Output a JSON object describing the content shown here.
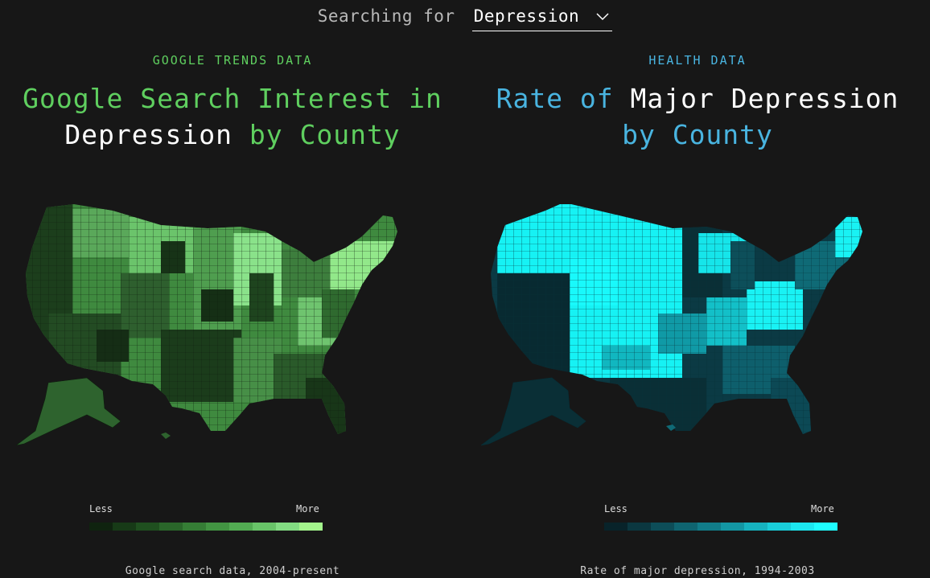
{
  "search": {
    "prefix": "Searching for",
    "selected": "Depression"
  },
  "left": {
    "eyebrow": "GOOGLE TRENDS DATA",
    "title": {
      "line1": "Google Search Interest in",
      "line2_highlight": "Depression",
      "line2_rest": " by County"
    },
    "legend": {
      "less": "Less",
      "more": "More",
      "colors": [
        "#0f230f",
        "#173a17",
        "#1f4f1f",
        "#2a662a",
        "#357d35",
        "#429442",
        "#52ab52",
        "#68c468",
        "#82dc82",
        "#a3f58c"
      ]
    },
    "source": "Google search data, 2004-present",
    "accent": "#5fcf5f"
  },
  "right": {
    "eyebrow": "HEALTH DATA",
    "title": {
      "line1_a": "Rate of ",
      "line1_b": "Major Depression",
      "line2": "by County"
    },
    "legend": {
      "less": "Less",
      "more": "More",
      "colors": [
        "#08232a",
        "#0b3740",
        "#0d4d58",
        "#0f6470",
        "#117c89",
        "#1396a3",
        "#16b2bf",
        "#19cdd9",
        "#1ce6ef",
        "#1ffcff"
      ]
    },
    "source": "Rate of major depression, 1994-2003",
    "accent": "#49b4e0"
  }
}
